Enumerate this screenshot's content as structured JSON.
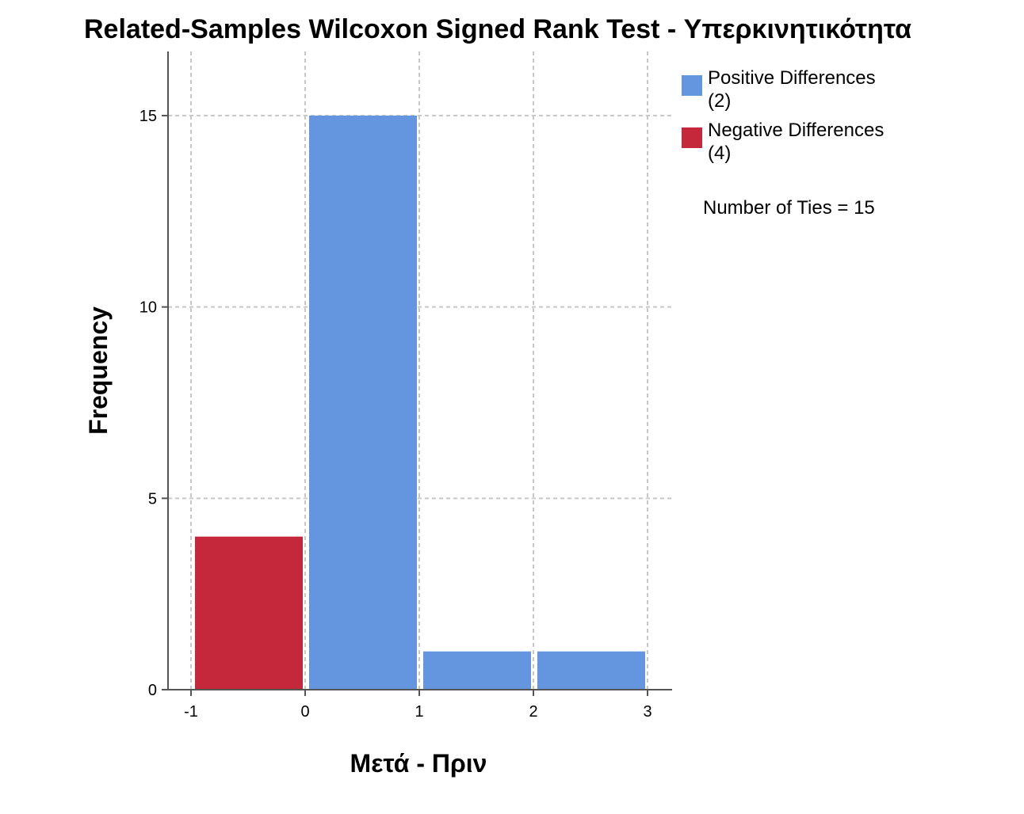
{
  "chart_data": {
    "type": "bar",
    "title": "Related-Samples Wilcoxon Signed Rank Test - Υπερκινητικότητα",
    "xlabel": "Μετά - Πριν",
    "ylabel": "Frequency",
    "bins": [
      {
        "x0": -1,
        "x1": 0,
        "value": 4,
        "series": "Negative Differences"
      },
      {
        "x0": 0,
        "x1": 1,
        "value": 15,
        "series": "Positive Differences"
      },
      {
        "x0": 1,
        "x1": 2,
        "value": 1,
        "series": "Positive Differences"
      },
      {
        "x0": 2,
        "x1": 3,
        "value": 1,
        "series": "Positive Differences"
      }
    ],
    "xticks": [
      "-1",
      "0",
      "1",
      "2",
      "3"
    ],
    "yticks": [
      "0",
      "5",
      "10",
      "15"
    ],
    "xlim": [
      -1.2,
      3.25
    ],
    "ylim": [
      0,
      16.7
    ],
    "grid": true,
    "legend_position": "right",
    "legend": [
      {
        "name": "Positive Differences",
        "count": "(2)",
        "color": "#6495DF"
      },
      {
        "name": "Negative Differences",
        "count": "(4)",
        "color": "#C4283A"
      }
    ],
    "note": "Number of Ties = 15"
  }
}
